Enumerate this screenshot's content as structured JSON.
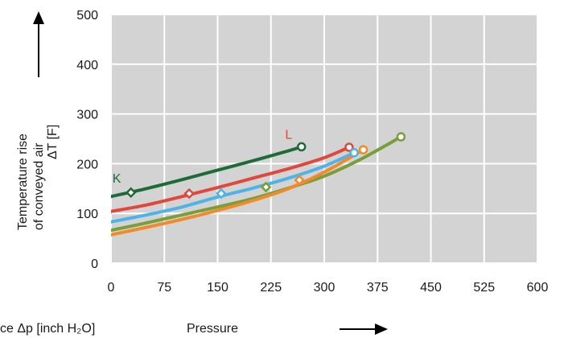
{
  "chart_data": {
    "type": "line",
    "xlim": [
      0,
      600
    ],
    "ylim": [
      0,
      500
    ],
    "x_ticks": [
      "0",
      "75",
      "150",
      "225",
      "300",
      "375",
      "450",
      "525",
      "600"
    ],
    "y_ticks": [
      "0",
      "100",
      "200",
      "300",
      "400",
      "500"
    ],
    "grid": true,
    "plot_background": "#d3d3d3",
    "grid_color": "#ffffff",
    "ylabel_lines": [
      "Temperature rise",
      "of conveyed air"
    ],
    "ylabel_unit": "ΔT [F]",
    "xlabel_left": "ce  Δp [inch H₂O]",
    "xlabel_right": "Pressure",
    "series": [
      {
        "name": "K",
        "color": "#1e6b3a",
        "x": [
          0,
          50,
          100,
          150,
          200,
          250,
          268
        ],
        "y": [
          134,
          150,
          168,
          187,
          206,
          226,
          234
        ],
        "marker_diamond": {
          "x": 28,
          "y": 142
        },
        "marker_circle": {
          "x": 268,
          "y": 234
        },
        "label_at": {
          "x": 2,
          "y": 162
        }
      },
      {
        "name": "L",
        "color": "#e2473e",
        "x": [
          0,
          50,
          100,
          150,
          200,
          250,
          300,
          335
        ],
        "y": [
          104,
          117,
          134,
          152,
          171,
          190,
          212,
          233
        ],
        "marker_diamond": {
          "x": 110,
          "y": 140
        },
        "marker_circle": {
          "x": 335,
          "y": 233
        },
        "label_at": {
          "x": 245,
          "y": 250
        }
      },
      {
        "name": "",
        "color": "#4fb3e8",
        "x": [
          0,
          50,
          100,
          150,
          200,
          250,
          300,
          342
        ],
        "y": [
          83,
          97,
          113,
          133,
          151,
          171,
          195,
          222
        ],
        "marker_diamond": {
          "x": 155,
          "y": 140
        },
        "marker_circle": {
          "x": 342,
          "y": 222
        }
      },
      {
        "name": "",
        "color": "#7a9e3a",
        "x": [
          0,
          50,
          100,
          150,
          200,
          250,
          300,
          350,
          408
        ],
        "y": [
          66,
          81,
          97,
          113,
          130,
          151,
          175,
          208,
          254
        ],
        "marker_diamond": {
          "x": 218,
          "y": 153
        },
        "marker_circle": {
          "x": 408,
          "y": 254
        }
      },
      {
        "name": "",
        "color": "#f08a2c",
        "x": [
          0,
          50,
          100,
          150,
          200,
          250,
          300,
          355
        ],
        "y": [
          57,
          72,
          88,
          106,
          126,
          150,
          183,
          228
        ],
        "marker_diamond": {
          "x": 265,
          "y": 167
        },
        "marker_circle": {
          "x": 355,
          "y": 228
        }
      }
    ]
  }
}
